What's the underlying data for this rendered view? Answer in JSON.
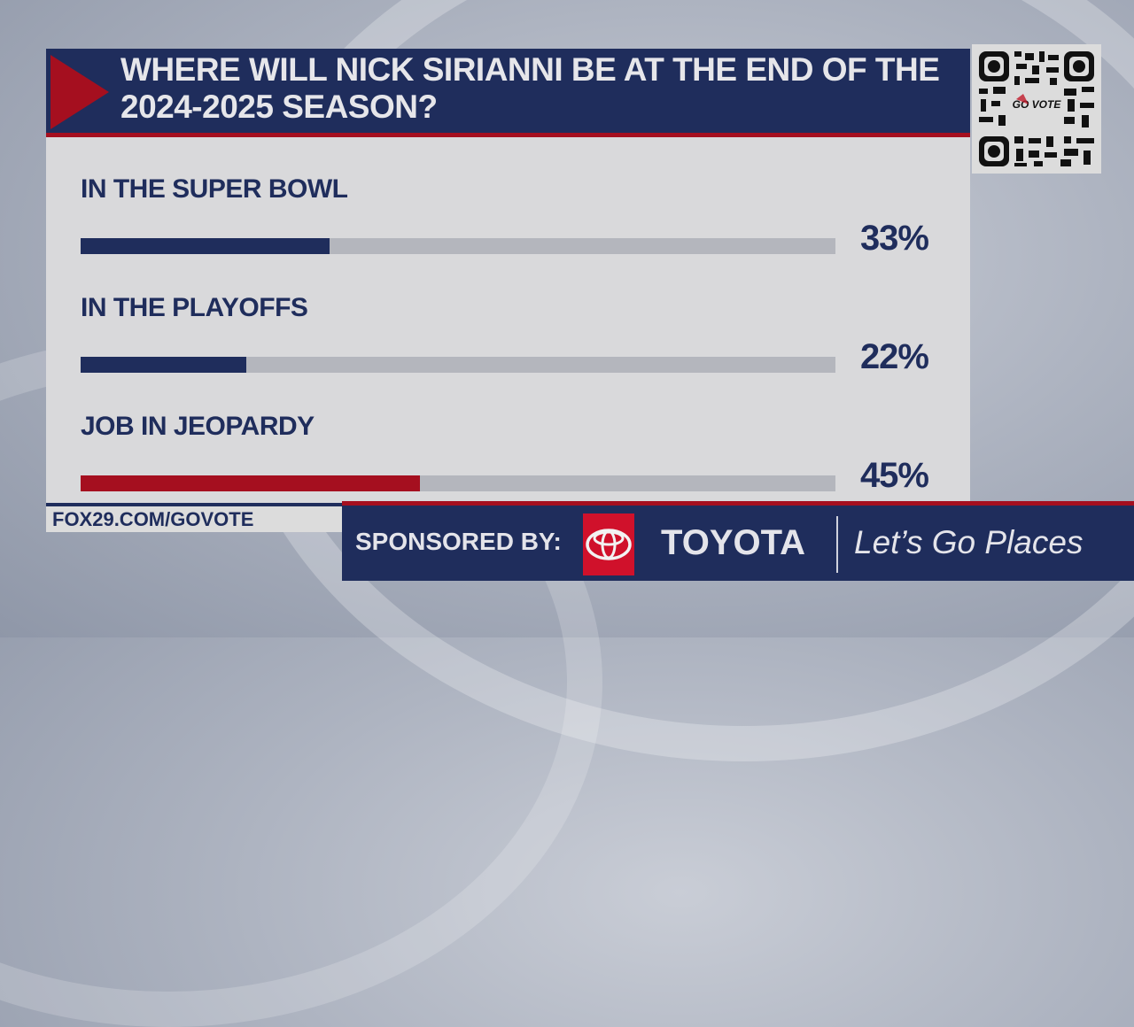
{
  "title": "WHERE WILL NICK SIRIANNI BE AT THE END OF THE 2024-2025 SEASON?",
  "title_lines": [
    "WHERE WILL NICK SIRIANNI BE AT THE END OF THE",
    "2024-2025 SEASON?"
  ],
  "options": [
    {
      "label": "IN THE SUPER BOWL",
      "value": 33,
      "display": "33%",
      "color": "#1f2d5c"
    },
    {
      "label": "IN THE PLAYOFFS",
      "value": 22,
      "display": "22%",
      "color": "#1f2d5c"
    },
    {
      "label": "JOB IN JEOPARDY",
      "value": 45,
      "display": "45%",
      "color": "#a50f1f"
    }
  ],
  "qr": {
    "center_text": "GO VOTE"
  },
  "footer": {
    "url": "FOX29.COM/GOVOTE"
  },
  "sponsor": {
    "label": "SPONSORED BY:",
    "brand": "TOYOTA",
    "tagline": "Let’s Go Places"
  },
  "colors": {
    "navy": "#1f2d5c",
    "red": "#a50f1f",
    "panel": "#d9d9db",
    "track": "#b4b6bd",
    "toyota_red": "#d0112b"
  },
  "chart_data": {
    "type": "bar",
    "orientation": "horizontal",
    "title": "WHERE WILL NICK SIRIANNI BE AT THE END OF THE 2024-2025 SEASON?",
    "categories": [
      "IN THE SUPER BOWL",
      "IN THE PLAYOFFS",
      "JOB IN JEOPARDY"
    ],
    "values": [
      33,
      22,
      45
    ],
    "value_labels": [
      "33%",
      "22%",
      "45%"
    ],
    "unit": "%",
    "xlim": [
      0,
      100
    ],
    "grid": false,
    "legend": null,
    "bar_colors": [
      "#1f2d5c",
      "#1f2d5c",
      "#a50f1f"
    ]
  }
}
